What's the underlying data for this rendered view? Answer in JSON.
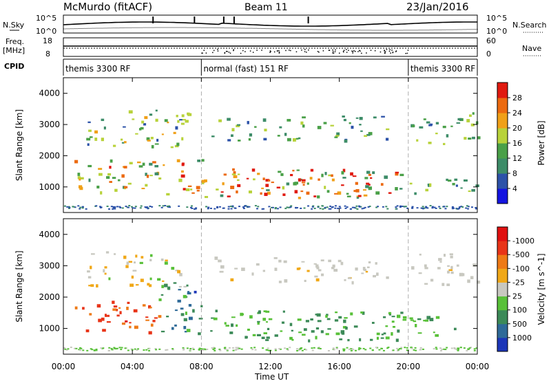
{
  "header": {
    "station": "McMurdo (fitACF)",
    "beam": "Beam 11",
    "date": "23/Jan/2016"
  },
  "noise_panel": {
    "left_label_1": "N.Sky",
    "left_label_2": "",
    "right_label": "N.Search",
    "ticks": [
      "10^5",
      "10^0"
    ]
  },
  "freq_panel": {
    "left_label_1": "Freq.",
    "left_label_2": "[MHz]",
    "right_label": "Nave",
    "left_ticks": [
      "18",
      "8"
    ],
    "right_ticks": [
      "60",
      "0"
    ]
  },
  "cpid_panel": {
    "label": "CPID",
    "segments": [
      {
        "text": "themis 3300 RF",
        "from_hour": 0,
        "to_hour": 8
      },
      {
        "text": "normal (fast) 151 RF",
        "from_hour": 8,
        "to_hour": 20
      },
      {
        "text": "themis 3300 RF",
        "from_hour": 20,
        "to_hour": 24
      }
    ]
  },
  "chart_data": [
    {
      "type": "heatmap",
      "title": "",
      "xlabel": "",
      "ylabel": "Slant Range [km]",
      "xlim_hours": [
        0,
        24
      ],
      "ylim": [
        180,
        4500
      ],
      "y_ticks": [
        "1000",
        "2000",
        "3000",
        "4000"
      ],
      "colorbar_label": "Power [dB]",
      "colorbar_ticks": [
        "4",
        "8",
        "12",
        "16",
        "20",
        "24",
        "28"
      ],
      "colorbar_colors": [
        "#1414e0",
        "#2c52a8",
        "#3d8c68",
        "#4aa048",
        "#b8d23a",
        "#f0a018",
        "#ec6a10",
        "#e01a10"
      ],
      "bands": [
        {
          "t0": 1.2,
          "t1": 7.4,
          "r0": 2300,
          "r1": 3500,
          "density": 0.5,
          "level": [
            0.2,
            0.7
          ]
        },
        {
          "t0": 0.6,
          "t1": 8.0,
          "r0": 800,
          "r1": 1900,
          "density": 0.55,
          "level": [
            0.3,
            0.95
          ]
        },
        {
          "t0": 8.0,
          "t1": 19.7,
          "r0": 650,
          "r1": 1600,
          "density": 0.7,
          "level": [
            0.25,
            1.0
          ]
        },
        {
          "t0": 8.5,
          "t1": 19.0,
          "r0": 2500,
          "r1": 3300,
          "density": 0.45,
          "level": [
            0.2,
            0.6
          ]
        },
        {
          "t0": 20.0,
          "t1": 24.0,
          "r0": 800,
          "r1": 1400,
          "density": 0.5,
          "level": [
            0.2,
            0.7
          ]
        },
        {
          "t0": 20.0,
          "t1": 24.0,
          "r0": 2400,
          "r1": 3400,
          "density": 0.5,
          "level": [
            0.2,
            0.6
          ]
        }
      ]
    },
    {
      "type": "heatmap",
      "title": "",
      "xlabel": "Time UT",
      "ylabel": "Slant Range [km]",
      "xlim_hours": [
        0,
        24
      ],
      "ylim": [
        180,
        4500
      ],
      "x_ticks": [
        "00:00",
        "04:00",
        "08:00",
        "12:00",
        "16:00",
        "20:00",
        "00:00"
      ],
      "y_ticks": [
        "1000",
        "2000",
        "3000",
        "4000"
      ],
      "colorbar_label": "Velocity [m s^-1]",
      "colorbar_ticks": [
        "1000",
        "500",
        "100",
        "25",
        "-25",
        "-100",
        "-500",
        "-1000"
      ],
      "colorbar_colors": [
        "#1c36b8",
        "#2e6a98",
        "#3c8a58",
        "#58c038",
        "#c8c8c0",
        "#f0a818",
        "#ee7a16",
        "#e83418",
        "#e01010"
      ],
      "bands": [
        {
          "t0": 1.2,
          "t1": 7.4,
          "r0": 2300,
          "r1": 3500,
          "density": 0.45,
          "level": [
            0.35,
            0.6
          ]
        },
        {
          "t0": 0.6,
          "t1": 5.5,
          "r0": 900,
          "r1": 1900,
          "density": 0.55,
          "level": [
            0.1,
            0.3
          ]
        },
        {
          "t0": 5.5,
          "t1": 8.0,
          "r0": 800,
          "r1": 2500,
          "density": 0.55,
          "level": [
            0.6,
            0.9
          ]
        },
        {
          "t0": 8.5,
          "t1": 19.7,
          "r0": 650,
          "r1": 1600,
          "density": 0.7,
          "level": [
            0.6,
            0.75
          ]
        },
        {
          "t0": 8.5,
          "t1": 19.0,
          "r0": 2500,
          "r1": 3300,
          "density": 0.45,
          "level": [
            0.44,
            0.5
          ]
        },
        {
          "t0": 20.0,
          "t1": 24.0,
          "r0": 2400,
          "r1": 3400,
          "density": 0.5,
          "level": [
            0.44,
            0.52
          ]
        },
        {
          "t0": 20.0,
          "t1": 24.0,
          "r0": 800,
          "r1": 1400,
          "density": 0.45,
          "level": [
            0.55,
            0.7
          ]
        }
      ]
    }
  ]
}
